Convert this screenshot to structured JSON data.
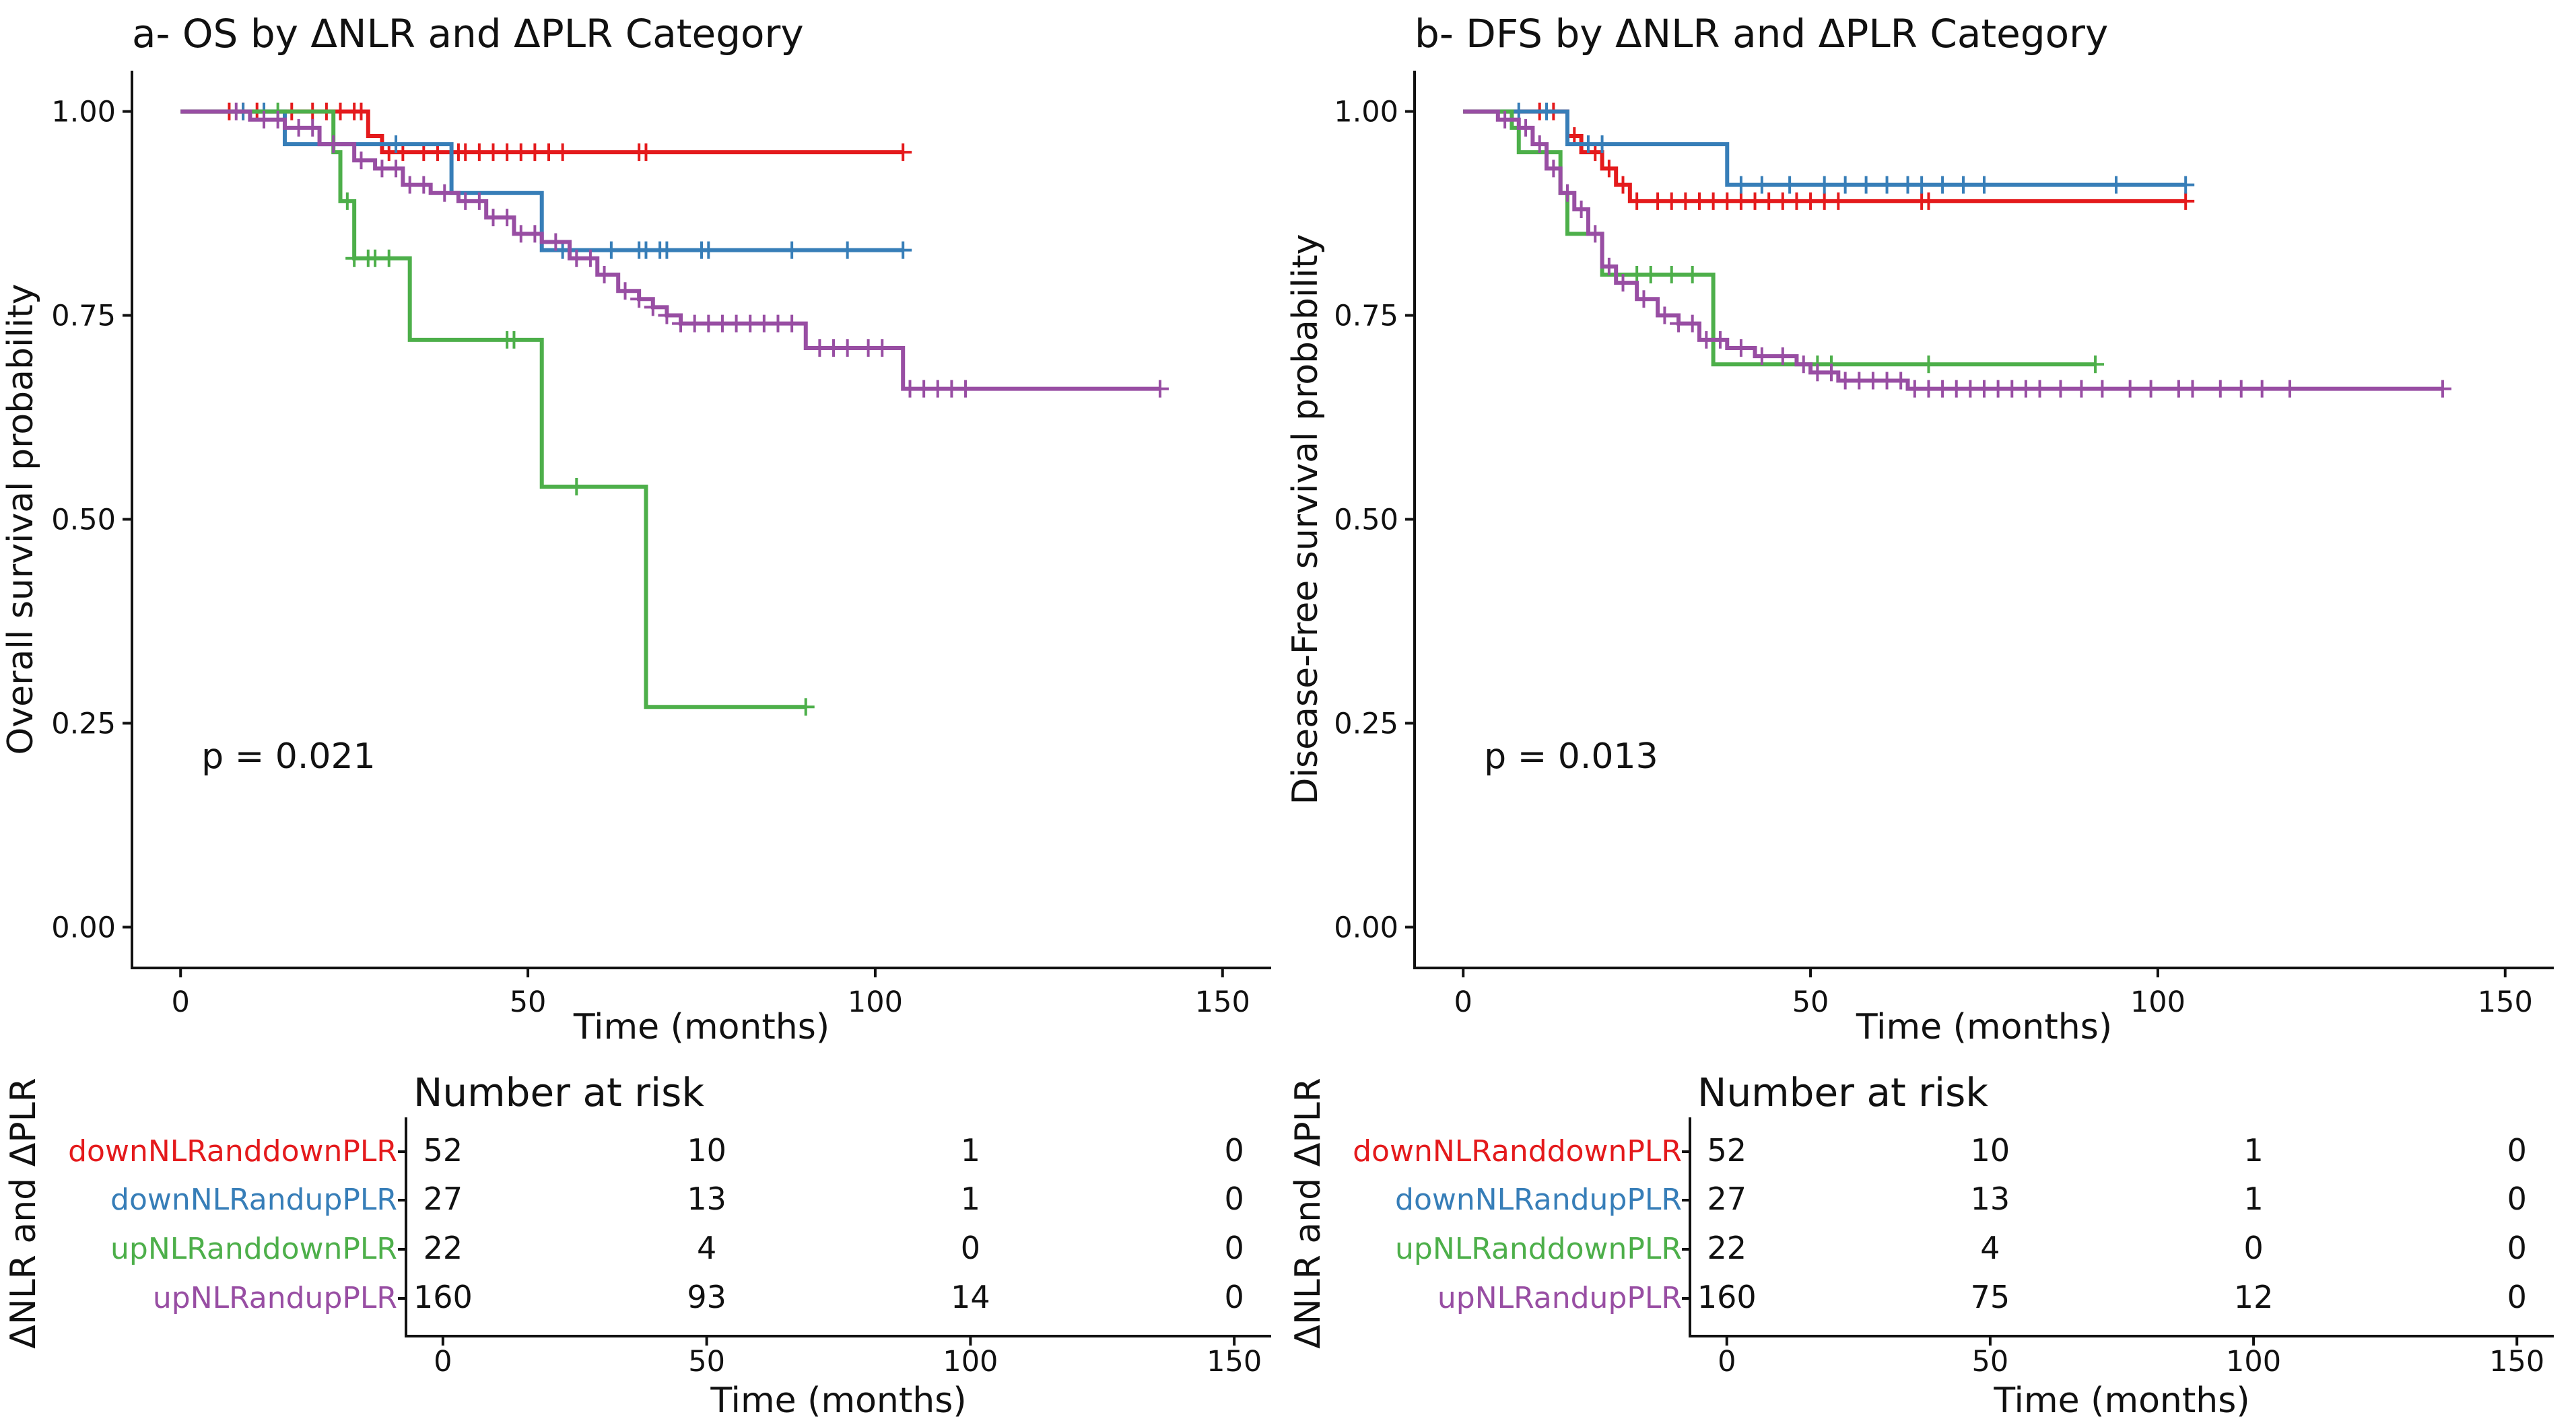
{
  "chart_data": [
    {
      "type": "line",
      "step": true,
      "title": "a- OS by ΔNLR and ΔPLR Category",
      "xlabel": "Time (months)",
      "ylabel": "Overall survival probability",
      "xlim": [
        -7,
        157
      ],
      "ylim": [
        -0.05,
        1.05
      ],
      "xticks": [
        "0",
        "50",
        "100",
        "150"
      ],
      "yticks": [
        "0.00",
        "0.25",
        "0.50",
        "0.75",
        "1.00"
      ],
      "annotation": "p = 0.021",
      "series": [
        {
          "name": "downNLRanddownPLR",
          "color": "#e41a1c",
          "steps": [
            [
              0,
              1.0
            ],
            [
              27,
              0.97
            ],
            [
              29,
              0.95
            ],
            [
              104,
              0.95
            ]
          ],
          "censors": [
            7,
            9,
            11,
            16,
            19,
            21,
            23,
            25,
            26,
            30,
            32,
            35,
            37,
            39,
            40,
            41,
            43,
            45,
            47,
            49,
            51,
            53,
            55,
            66,
            67,
            104
          ]
        },
        {
          "name": "downNLRandupPLR",
          "color": "#377eb8",
          "steps": [
            [
              0,
              1.0
            ],
            [
              15,
              0.96
            ],
            [
              39,
              0.9
            ],
            [
              52,
              0.83
            ],
            [
              104,
              0.83
            ]
          ],
          "censors": [
            9,
            12,
            31,
            55,
            62,
            66,
            67,
            69,
            70,
            75,
            76,
            88,
            96,
            104
          ]
        },
        {
          "name": "upNLRanddownPLR",
          "color": "#4daf4a",
          "steps": [
            [
              0,
              1.0
            ],
            [
              22,
              0.95
            ],
            [
              23,
              0.89
            ],
            [
              25,
              0.82
            ],
            [
              33,
              0.72
            ],
            [
              52,
              0.54
            ],
            [
              67,
              0.27
            ],
            [
              90,
              0.27
            ]
          ],
          "censors": [
            14,
            24,
            25,
            27,
            28,
            30,
            47,
            48,
            57,
            90
          ]
        },
        {
          "name": "upNLRandupPLR",
          "color": "#984ea3",
          "steps": [
            [
              0,
              1.0
            ],
            [
              10,
              0.99
            ],
            [
              15,
              0.98
            ],
            [
              20,
              0.96
            ],
            [
              25,
              0.94
            ],
            [
              28,
              0.93
            ],
            [
              32,
              0.91
            ],
            [
              36,
              0.9
            ],
            [
              40,
              0.89
            ],
            [
              44,
              0.87
            ],
            [
              48,
              0.85
            ],
            [
              52,
              0.84
            ],
            [
              56,
              0.82
            ],
            [
              60,
              0.8
            ],
            [
              63,
              0.78
            ],
            [
              66,
              0.77
            ],
            [
              68,
              0.76
            ],
            [
              70,
              0.75
            ],
            [
              72,
              0.74
            ],
            [
              88,
              0.74
            ],
            [
              90,
              0.71
            ],
            [
              103,
              0.71
            ],
            [
              104,
              0.66
            ],
            [
              141,
              0.66
            ]
          ],
          "censors": [
            8,
            12,
            14,
            17,
            19,
            22,
            26,
            29,
            31,
            33,
            35,
            38,
            41,
            43,
            45,
            47,
            49,
            51,
            54,
            57,
            59,
            61,
            64,
            66,
            68,
            70,
            72,
            74,
            76,
            78,
            80,
            82,
            84,
            86,
            88,
            92,
            94,
            96,
            99,
            101,
            105,
            107,
            109,
            111,
            113,
            141
          ]
        }
      ],
      "risk_table": {
        "title": "Number at risk",
        "ylabel": "ΔNLR and ΔPLR",
        "xlabel": "Time (months)",
        "times": [
          "0",
          "50",
          "100",
          "150"
        ],
        "rows": [
          {
            "label": "downNLRanddownPLR",
            "color": "#e41a1c",
            "values": [
              "52",
              "10",
              "1",
              "0"
            ]
          },
          {
            "label": "downNLRandupPLR",
            "color": "#377eb8",
            "values": [
              "27",
              "13",
              "1",
              "0"
            ]
          },
          {
            "label": "upNLRanddownPLR",
            "color": "#4daf4a",
            "values": [
              "22",
              "4",
              "0",
              "0"
            ]
          },
          {
            "label": "upNLRandupPLR",
            "color": "#984ea3",
            "values": [
              "160",
              "93",
              "14",
              "0"
            ]
          }
        ]
      }
    },
    {
      "type": "line",
      "step": true,
      "title": "b- DFS by ΔNLR and ΔPLR Category",
      "xlabel": "Time (months)",
      "ylabel": "Disease-Free survival probability",
      "xlim": [
        -7,
        157
      ],
      "ylim": [
        -0.05,
        1.05
      ],
      "xticks": [
        "0",
        "50",
        "100",
        "150"
      ],
      "yticks": [
        "0.00",
        "0.25",
        "0.50",
        "0.75",
        "1.00"
      ],
      "annotation": "p = 0.013",
      "series": [
        {
          "name": "downNLRanddownPLR",
          "color": "#e41a1c",
          "steps": [
            [
              0,
              1.0
            ],
            [
              15,
              0.97
            ],
            [
              17,
              0.95
            ],
            [
              20,
              0.93
            ],
            [
              22,
              0.91
            ],
            [
              24,
              0.89
            ],
            [
              104,
              0.89
            ]
          ],
          "censors": [
            11,
            13,
            16,
            19,
            21,
            23,
            25,
            28,
            30,
            32,
            34,
            36,
            38,
            40,
            42,
            44,
            46,
            48,
            50,
            52,
            54,
            66,
            67,
            104
          ]
        },
        {
          "name": "downNLRandupPLR",
          "color": "#377eb8",
          "steps": [
            [
              0,
              1.0
            ],
            [
              15,
              0.96
            ],
            [
              38,
              0.91
            ],
            [
              104,
              0.91
            ]
          ],
          "censors": [
            8,
            12,
            18,
            20,
            40,
            43,
            47,
            52,
            55,
            58,
            61,
            64,
            66,
            69,
            72,
            75,
            94,
            104
          ]
        },
        {
          "name": "upNLRanddownPLR",
          "color": "#4daf4a",
          "steps": [
            [
              0,
              1.0
            ],
            [
              7,
              0.98
            ],
            [
              8,
              0.95
            ],
            [
              14,
              0.9
            ],
            [
              15,
              0.85
            ],
            [
              20,
              0.8
            ],
            [
              36,
              0.8
            ],
            [
              36,
              0.69
            ],
            [
              91,
              0.69
            ]
          ],
          "censors": [
            22,
            25,
            27,
            30,
            33,
            51,
            53,
            67,
            91
          ]
        },
        {
          "name": "upNLRandupPLR",
          "color": "#984ea3",
          "steps": [
            [
              0,
              1.0
            ],
            [
              5,
              0.99
            ],
            [
              8,
              0.98
            ],
            [
              10,
              0.96
            ],
            [
              12,
              0.93
            ],
            [
              14,
              0.9
            ],
            [
              16,
              0.88
            ],
            [
              18,
              0.85
            ],
            [
              20,
              0.81
            ],
            [
              22,
              0.79
            ],
            [
              25,
              0.77
            ],
            [
              28,
              0.75
            ],
            [
              31,
              0.74
            ],
            [
              34,
              0.72
            ],
            [
              38,
              0.71
            ],
            [
              42,
              0.7
            ],
            [
              48,
              0.69
            ],
            [
              50,
              0.68
            ],
            [
              54,
              0.67
            ],
            [
              60,
              0.67
            ],
            [
              64,
              0.66
            ],
            [
              141,
              0.66
            ]
          ],
          "censors": [
            6,
            9,
            11,
            13,
            15,
            17,
            19,
            21,
            23,
            26,
            29,
            31,
            33,
            35,
            37,
            40,
            43,
            46,
            49,
            51,
            53,
            55,
            57,
            59,
            61,
            63,
            65,
            67,
            69,
            71,
            73,
            75,
            77,
            79,
            81,
            83,
            86,
            89,
            92,
            96,
            99,
            103,
            105,
            109,
            112,
            115,
            119,
            141
          ]
        }
      ],
      "risk_table": {
        "title": "Number at risk",
        "ylabel": "ΔNLR and ΔPLR",
        "xlabel": "Time (months)",
        "times": [
          "0",
          "50",
          "100",
          "150"
        ],
        "rows": [
          {
            "label": "downNLRanddownPLR",
            "color": "#e41a1c",
            "values": [
              "52",
              "10",
              "1",
              "0"
            ]
          },
          {
            "label": "downNLRandupPLR",
            "color": "#377eb8",
            "values": [
              "27",
              "13",
              "1",
              "0"
            ]
          },
          {
            "label": "upNLRanddownPLR",
            "color": "#4daf4a",
            "values": [
              "22",
              "4",
              "0",
              "0"
            ]
          },
          {
            "label": "upNLRandupPLR",
            "color": "#984ea3",
            "values": [
              "160",
              "75",
              "12",
              "0"
            ]
          }
        ]
      }
    }
  ]
}
